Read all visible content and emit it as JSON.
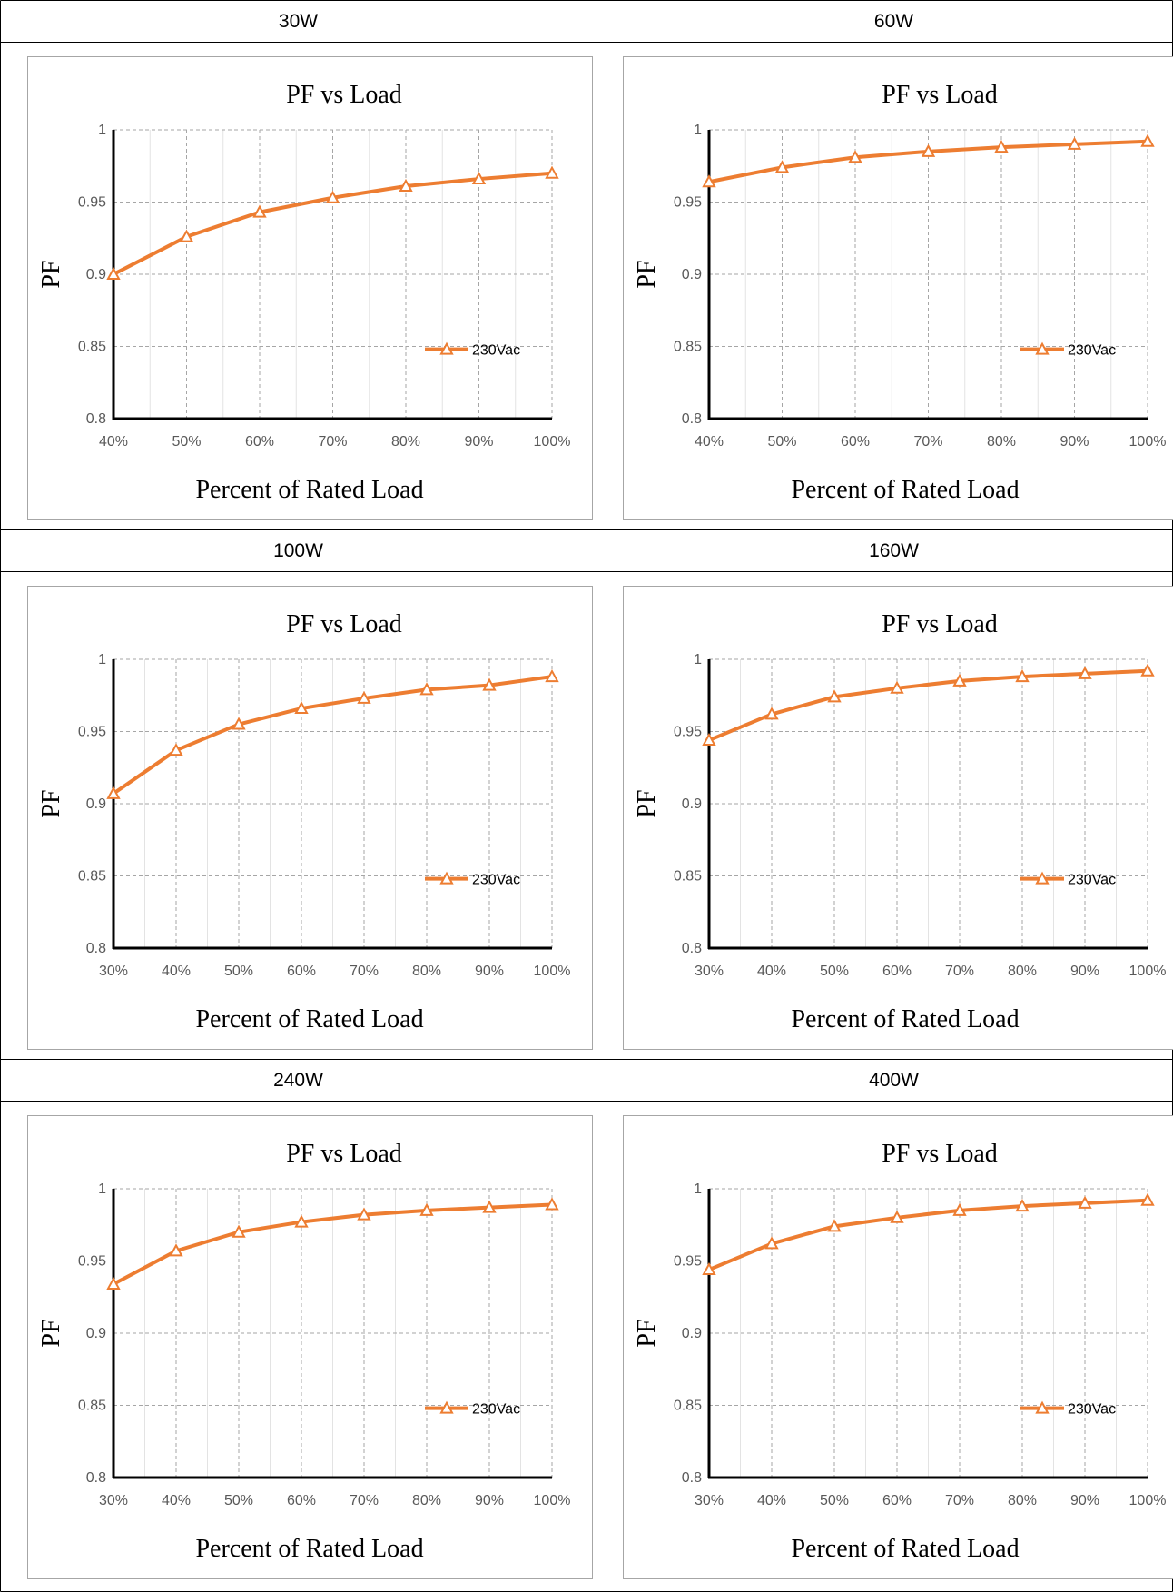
{
  "colors": {
    "series": "#ED7D31",
    "axis": "#000000",
    "grid": "#A6A6A6",
    "frame": "#A6A6A6"
  },
  "panels": [
    {
      "header": "30W",
      "chart_data": {
        "type": "line",
        "title": "PF vs Load",
        "xlabel": "Percent of Rated Load",
        "ylabel": "PF",
        "categories": [
          "40%",
          "50%",
          "60%",
          "70%",
          "80%",
          "90%",
          "100%"
        ],
        "series": [
          {
            "name": "230Vac",
            "values": [
              0.9,
              0.926,
              0.943,
              0.953,
              0.961,
              0.966,
              0.97
            ]
          }
        ],
        "ylim": [
          0.8,
          1
        ],
        "yticks": [
          "0.8",
          "0.85",
          "0.9",
          "0.95",
          "1"
        ],
        "legend": "right",
        "grid": true
      }
    },
    {
      "header": "60W",
      "chart_data": {
        "type": "line",
        "title": "PF vs Load",
        "xlabel": "Percent of Rated Load",
        "ylabel": "PF",
        "categories": [
          "40%",
          "50%",
          "60%",
          "70%",
          "80%",
          "90%",
          "100%"
        ],
        "series": [
          {
            "name": "230Vac",
            "values": [
              0.964,
              0.974,
              0.981,
              0.985,
              0.988,
              0.99,
              0.992
            ]
          }
        ],
        "ylim": [
          0.8,
          1
        ],
        "yticks": [
          "0.8",
          "0.85",
          "0.9",
          "0.95",
          "1"
        ],
        "legend": "right",
        "grid": true
      }
    },
    {
      "header": "100W",
      "chart_data": {
        "type": "line",
        "title": "PF vs Load",
        "xlabel": "Percent of Rated Load",
        "ylabel": "PF",
        "categories": [
          "30%",
          "40%",
          "50%",
          "60%",
          "70%",
          "80%",
          "90%",
          "100%"
        ],
        "series": [
          {
            "name": "230Vac",
            "values": [
              0.907,
              0.937,
              0.955,
              0.966,
              0.973,
              0.979,
              0.982,
              0.988
            ]
          }
        ],
        "ylim": [
          0.8,
          1
        ],
        "yticks": [
          "0.8",
          "0.85",
          "0.9",
          "0.95",
          "1"
        ],
        "legend": "right",
        "grid": true
      }
    },
    {
      "header": "160W",
      "chart_data": {
        "type": "line",
        "title": "PF vs Load",
        "xlabel": "Percent of Rated Load",
        "ylabel": "PF",
        "categories": [
          "30%",
          "40%",
          "50%",
          "60%",
          "70%",
          "80%",
          "90%",
          "100%"
        ],
        "series": [
          {
            "name": "230Vac",
            "values": [
              0.944,
              0.962,
              0.974,
              0.98,
              0.985,
              0.988,
              0.99,
              0.992
            ]
          }
        ],
        "ylim": [
          0.8,
          1
        ],
        "yticks": [
          "0.8",
          "0.85",
          "0.9",
          "0.95",
          "1"
        ],
        "legend": "right",
        "grid": true
      }
    },
    {
      "header": "240W",
      "chart_data": {
        "type": "line",
        "title": "PF vs Load",
        "xlabel": "Percent of Rated Load",
        "ylabel": "PF",
        "categories": [
          "30%",
          "40%",
          "50%",
          "60%",
          "70%",
          "80%",
          "90%",
          "100%"
        ],
        "series": [
          {
            "name": "230Vac",
            "values": [
              0.934,
              0.957,
              0.97,
              0.977,
              0.982,
              0.985,
              0.987,
              0.989
            ]
          }
        ],
        "ylim": [
          0.8,
          1
        ],
        "yticks": [
          "0.8",
          "0.85",
          "0.9",
          "0.95",
          "1"
        ],
        "legend": "right",
        "grid": true
      }
    },
    {
      "header": "400W",
      "chart_data": {
        "type": "line",
        "title": "PF vs Load",
        "xlabel": "Percent of Rated Load",
        "ylabel": "PF",
        "categories": [
          "30%",
          "40%",
          "50%",
          "60%",
          "70%",
          "80%",
          "90%",
          "100%"
        ],
        "series": [
          {
            "name": "230Vac",
            "values": [
              0.944,
              0.962,
              0.974,
              0.98,
              0.985,
              0.988,
              0.99,
              0.992
            ]
          }
        ],
        "ylim": [
          0.8,
          1
        ],
        "yticks": [
          "0.8",
          "0.85",
          "0.9",
          "0.95",
          "1"
        ],
        "legend": "right",
        "grid": true
      }
    }
  ]
}
